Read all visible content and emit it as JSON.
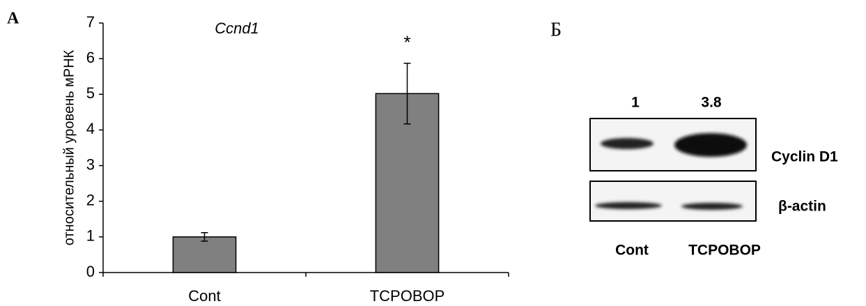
{
  "panel_a": "А",
  "panel_b": "Б",
  "chart_data": {
    "type": "bar",
    "title": "Ccnd1",
    "y_label": "относительный уровень мРНК",
    "categories": [
      "Cont",
      "TCPOBOP"
    ],
    "values": [
      1,
      5.02
    ],
    "errors": [
      0.12,
      0.85
    ],
    "color": "#808080",
    "ylim": [
      0,
      7
    ],
    "yticks": [
      0,
      1,
      2,
      3,
      4,
      5,
      6,
      7
    ],
    "annotation": "*"
  },
  "blot": {
    "quantification": [
      1,
      3.8
    ],
    "lanes": [
      "Cont",
      "TCPOBOP"
    ],
    "bands": [
      "Cyclin D1",
      "β-actin"
    ]
  }
}
